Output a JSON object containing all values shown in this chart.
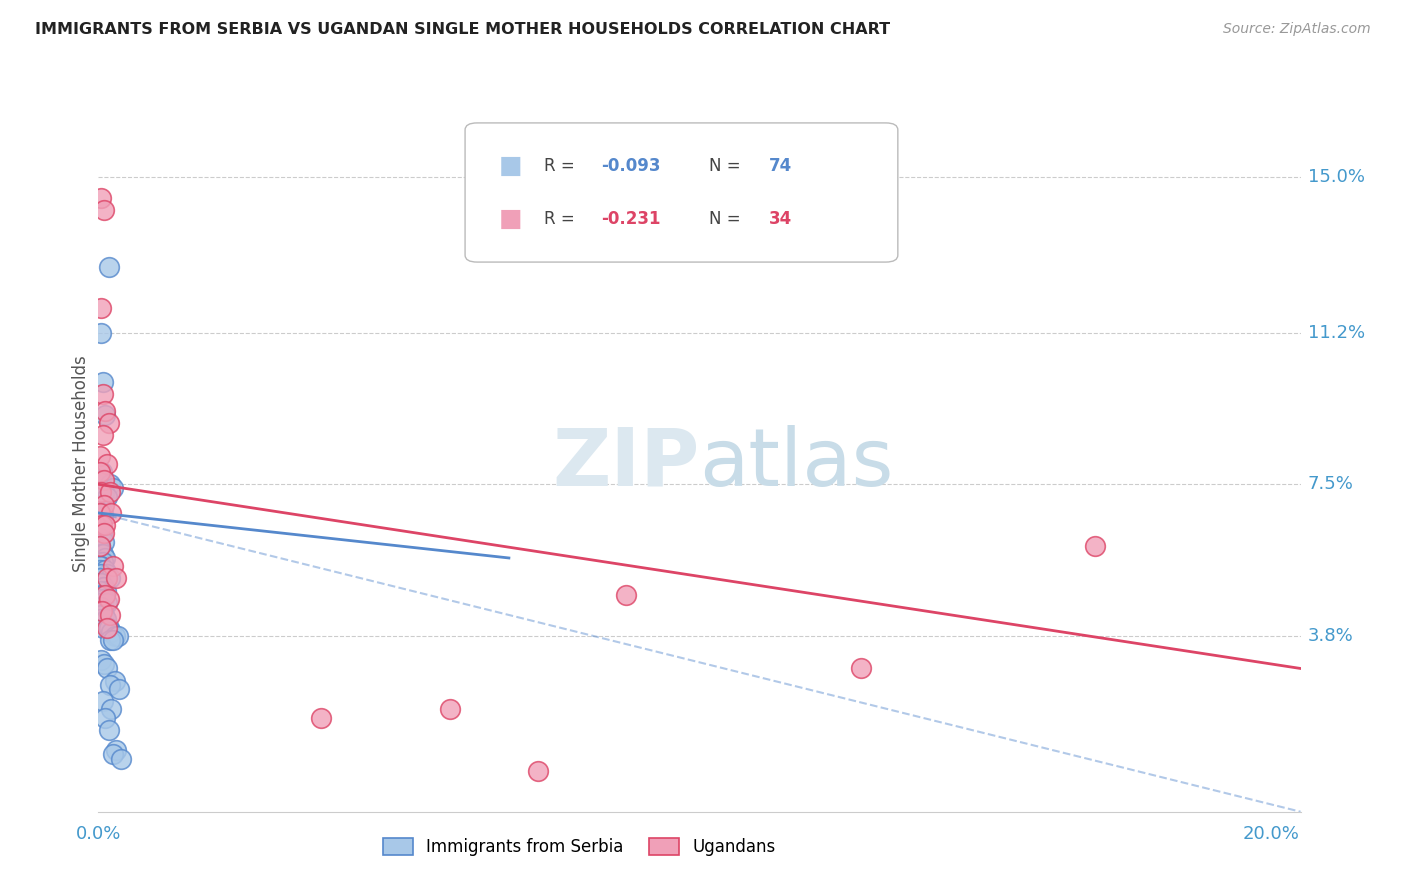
{
  "title": "IMMIGRANTS FROM SERBIA VS UGANDAN SINGLE MOTHER HOUSEHOLDS CORRELATION CHART",
  "source": "Source: ZipAtlas.com",
  "ylabel": "Single Mother Households",
  "right_yticks": [
    "15.0%",
    "11.2%",
    "7.5%",
    "3.8%"
  ],
  "right_ytick_vals": [
    0.15,
    0.112,
    0.075,
    0.038
  ],
  "serbia_color": "#a8c8e8",
  "ugandan_color": "#f0a0b8",
  "serbia_line_color": "#5588cc",
  "ugandan_line_color": "#dd4466",
  "serbia_scatter": [
    [
      0.0018,
      0.128
    ],
    [
      0.0005,
      0.112
    ],
    [
      0.0008,
      0.1
    ],
    [
      0.0012,
      0.092
    ],
    [
      0.0006,
      0.078
    ],
    [
      0.0004,
      0.076
    ],
    [
      0.002,
      0.075
    ],
    [
      0.0025,
      0.074
    ],
    [
      0.001,
      0.073
    ],
    [
      0.0015,
      0.072
    ],
    [
      0.0003,
      0.07
    ],
    [
      0.0008,
      0.068
    ],
    [
      0.0007,
      0.067
    ],
    [
      0.0004,
      0.066
    ],
    [
      0.0002,
      0.065
    ],
    [
      0.0003,
      0.064
    ],
    [
      0.0006,
      0.063
    ],
    [
      0.0002,
      0.062
    ],
    [
      0.0009,
      0.061
    ],
    [
      0.0003,
      0.06
    ],
    [
      0.0002,
      0.059
    ],
    [
      0.0005,
      0.058
    ],
    [
      0.0008,
      0.058
    ],
    [
      0.0011,
      0.057
    ],
    [
      0.0002,
      0.056
    ],
    [
      0.0007,
      0.056
    ],
    [
      0.0005,
      0.055
    ],
    [
      0.0003,
      0.055
    ],
    [
      0.0002,
      0.054
    ],
    [
      0.0012,
      0.054
    ],
    [
      0.0015,
      0.053
    ],
    [
      0.0005,
      0.053
    ],
    [
      0.0002,
      0.052
    ],
    [
      0.002,
      0.052
    ],
    [
      0.0002,
      0.051
    ],
    [
      0.0005,
      0.051
    ],
    [
      0.0007,
      0.05
    ],
    [
      0.001,
      0.05
    ],
    [
      0.0013,
      0.049
    ],
    [
      0.0002,
      0.049
    ],
    [
      0.0005,
      0.048
    ],
    [
      0.0008,
      0.048
    ],
    [
      0.0004,
      0.047
    ],
    [
      0.001,
      0.047
    ],
    [
      0.0002,
      0.046
    ],
    [
      0.0015,
      0.046
    ],
    [
      0.0002,
      0.045
    ],
    [
      0.0005,
      0.045
    ],
    [
      0.0008,
      0.044
    ],
    [
      0.0002,
      0.044
    ],
    [
      0.001,
      0.043
    ],
    [
      0.0005,
      0.043
    ],
    [
      0.0002,
      0.042
    ],
    [
      0.0013,
      0.042
    ],
    [
      0.0008,
      0.04
    ],
    [
      0.0018,
      0.04
    ],
    [
      0.0022,
      0.039
    ],
    [
      0.0028,
      0.038
    ],
    [
      0.0033,
      0.038
    ],
    [
      0.002,
      0.037
    ],
    [
      0.0025,
      0.037
    ],
    [
      0.0005,
      0.032
    ],
    [
      0.001,
      0.031
    ],
    [
      0.0015,
      0.03
    ],
    [
      0.0028,
      0.027
    ],
    [
      0.002,
      0.026
    ],
    [
      0.0035,
      0.025
    ],
    [
      0.0008,
      0.022
    ],
    [
      0.0022,
      0.02
    ],
    [
      0.0012,
      0.018
    ],
    [
      0.0018,
      0.015
    ],
    [
      0.003,
      0.01
    ],
    [
      0.0025,
      0.009
    ],
    [
      0.0038,
      0.008
    ]
  ],
  "ugandan_scatter": [
    [
      0.0005,
      0.145
    ],
    [
      0.001,
      0.142
    ],
    [
      0.0005,
      0.118
    ],
    [
      0.0008,
      0.097
    ],
    [
      0.0012,
      0.093
    ],
    [
      0.0018,
      0.09
    ],
    [
      0.0007,
      0.087
    ],
    [
      0.0003,
      0.082
    ],
    [
      0.0015,
      0.08
    ],
    [
      0.0003,
      0.078
    ],
    [
      0.0009,
      0.076
    ],
    [
      0.0005,
      0.073
    ],
    [
      0.002,
      0.073
    ],
    [
      0.0009,
      0.07
    ],
    [
      0.0003,
      0.068
    ],
    [
      0.0022,
      0.068
    ],
    [
      0.0006,
      0.065
    ],
    [
      0.0012,
      0.065
    ],
    [
      0.0009,
      0.063
    ],
    [
      0.0003,
      0.06
    ],
    [
      0.0025,
      0.055
    ],
    [
      0.0015,
      0.052
    ],
    [
      0.003,
      0.052
    ],
    [
      0.0012,
      0.048
    ],
    [
      0.0018,
      0.047
    ],
    [
      0.0006,
      0.044
    ],
    [
      0.002,
      0.043
    ],
    [
      0.0015,
      0.04
    ],
    [
      0.17,
      0.06
    ],
    [
      0.09,
      0.048
    ],
    [
      0.13,
      0.03
    ],
    [
      0.06,
      0.02
    ],
    [
      0.038,
      0.018
    ],
    [
      0.075,
      0.005
    ]
  ],
  "xlim": [
    0.0,
    0.205
  ],
  "ylim": [
    -0.005,
    0.165
  ],
  "serbia_trend_x": [
    0.0,
    0.07
  ],
  "serbia_trend_y": [
    0.068,
    0.057
  ],
  "ugandan_trend_x": [
    0.0,
    0.205
  ],
  "ugandan_trend_y": [
    0.075,
    0.03
  ],
  "dashed_trend_x": [
    0.0,
    0.205
  ],
  "dashed_trend_y": [
    0.068,
    -0.005
  ]
}
